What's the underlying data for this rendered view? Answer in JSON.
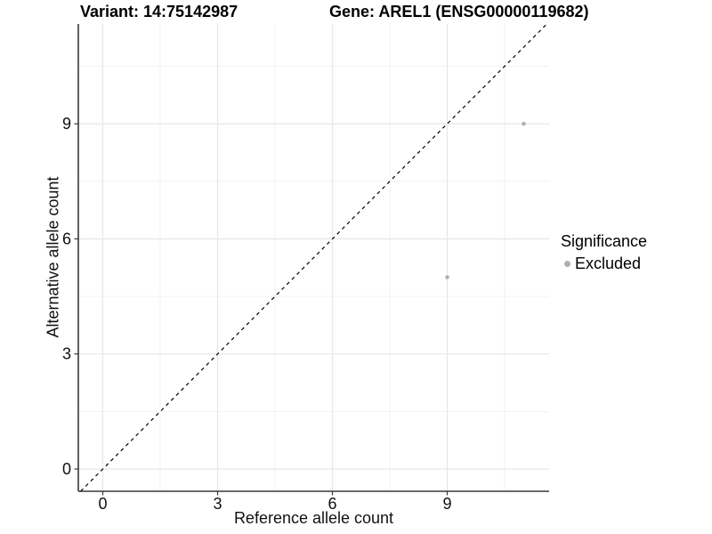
{
  "titles": {
    "variant": "Variant: 14:75142987",
    "gene": "Gene: AREL1 (ENSG00000119682)"
  },
  "legend": {
    "title": "Significance",
    "items": [
      {
        "label": "Excluded",
        "color": "#b0b0b0"
      }
    ]
  },
  "chart_data": {
    "type": "scatter",
    "title": "Variant: 14:75142987 | Gene: AREL1 (ENSG00000119682)",
    "xlabel": "Reference allele count",
    "ylabel": "Alternative allele count",
    "x_ticks": [
      0,
      3,
      6,
      9
    ],
    "y_ticks": [
      0,
      3,
      6,
      9
    ],
    "xlim": [
      -0.64,
      11.66
    ],
    "ylim": [
      -0.58,
      11.6
    ],
    "grid": true,
    "legend_position": "right",
    "series": [
      {
        "name": "Excluded",
        "color": "#b0b0b0",
        "points": [
          {
            "x": 9,
            "y": 5
          },
          {
            "x": 11,
            "y": 9
          }
        ]
      }
    ],
    "identity_line": {
      "style": "dashed",
      "color": "#000000",
      "equation": "y = x"
    }
  }
}
